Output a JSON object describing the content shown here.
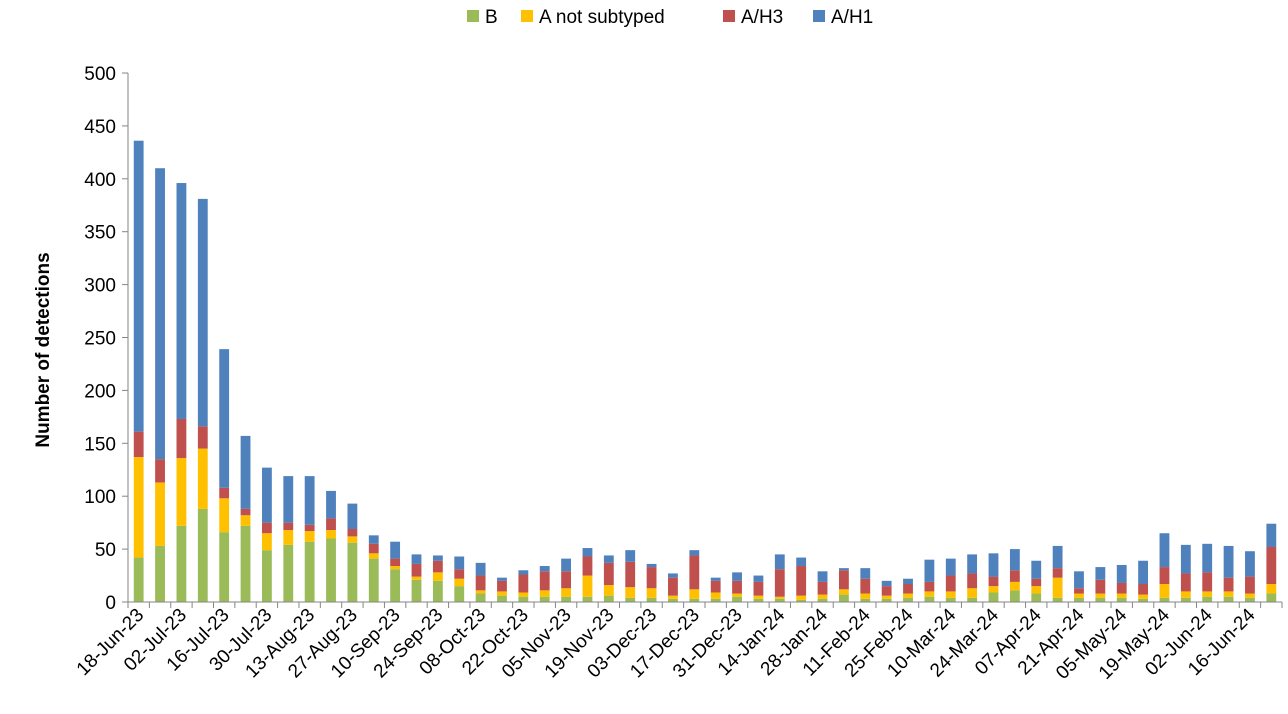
{
  "chart_data": {
    "type": "bar",
    "stacked": true,
    "title": "",
    "xlabel": "",
    "ylabel": "Number of detections",
    "ylim": [
      0,
      500
    ],
    "yticks": [
      0,
      50,
      100,
      150,
      200,
      250,
      300,
      350,
      400,
      450,
      500
    ],
    "grid": false,
    "legend_position": "top-center",
    "categories": [
      "18-Jun-23",
      "25-Jun-23",
      "02-Jul-23",
      "09-Jul-23",
      "16-Jul-23",
      "23-Jul-23",
      "30-Jul-23",
      "06-Aug-23",
      "13-Aug-23",
      "20-Aug-23",
      "27-Aug-23",
      "03-Sep-23",
      "10-Sep-23",
      "17-Sep-23",
      "24-Sep-23",
      "01-Oct-23",
      "08-Oct-23",
      "15-Oct-23",
      "22-Oct-23",
      "29-Oct-23",
      "05-Nov-23",
      "12-Nov-23",
      "19-Nov-23",
      "26-Nov-23",
      "03-Dec-23",
      "10-Dec-23",
      "17-Dec-23",
      "24-Dec-23",
      "31-Dec-23",
      "07-Jan-24",
      "14-Jan-24",
      "21-Jan-24",
      "28-Jan-24",
      "04-Feb-24",
      "11-Feb-24",
      "18-Feb-24",
      "25-Feb-24",
      "03-Mar-24",
      "10-Mar-24",
      "17-Mar-24",
      "24-Mar-24",
      "31-Mar-24",
      "07-Apr-24",
      "14-Apr-24",
      "21-Apr-24",
      "28-Apr-24",
      "05-May-24",
      "12-May-24",
      "19-May-24",
      "26-May-24",
      "02-Jun-24",
      "09-Jun-24",
      "16-Jun-24",
      "23-Jun-24"
    ],
    "tick_labels": [
      "18-Jun-23",
      "02-Jul-23",
      "16-Jul-23",
      "30-Jul-23",
      "13-Aug-23",
      "27-Aug-23",
      "10-Sep-23",
      "24-Sep-23",
      "08-Oct-23",
      "22-Oct-23",
      "05-Nov-23",
      "19-Nov-23",
      "03-Dec-23",
      "17-Dec-23",
      "31-Dec-23",
      "14-Jan-24",
      "28-Jan-24",
      "11-Feb-24",
      "25-Feb-24",
      "10-Mar-24",
      "24-Mar-24",
      "07-Apr-24",
      "21-Apr-24",
      "05-May-24",
      "19-May-24",
      "02-Jun-24",
      "16-Jun-24"
    ],
    "series": [
      {
        "name": "B",
        "color": "#9BBB59",
        "values": [
          42,
          53,
          72,
          88,
          66,
          72,
          49,
          54,
          57,
          60,
          56,
          41,
          31,
          21,
          20,
          15,
          8,
          6,
          5,
          5,
          5,
          5,
          6,
          4,
          4,
          3,
          3,
          3,
          5,
          3,
          3,
          2,
          3,
          7,
          3,
          3,
          4,
          5,
          4,
          4,
          9,
          11,
          8,
          4,
          4,
          4,
          4,
          3,
          4,
          4,
          5,
          5,
          4,
          8
        ]
      },
      {
        "name": "A not subtyped",
        "color": "#FFC000",
        "values": [
          95,
          60,
          64,
          57,
          32,
          10,
          16,
          14,
          10,
          8,
          6,
          5,
          3,
          3,
          8,
          7,
          3,
          4,
          4,
          6,
          8,
          20,
          10,
          10,
          9,
          3,
          9,
          6,
          3,
          3,
          2,
          4,
          4,
          5,
          5,
          3,
          4,
          5,
          6,
          9,
          6,
          8,
          7,
          19,
          4,
          4,
          4,
          4,
          13,
          6,
          5,
          5,
          4,
          9
        ]
      },
      {
        "name": "A/H3",
        "color": "#C0504D",
        "values": [
          24,
          22,
          37,
          21,
          10,
          6,
          10,
          7,
          6,
          11,
          7,
          9,
          7,
          12,
          11,
          9,
          14,
          10,
          17,
          18,
          16,
          18,
          21,
          24,
          20,
          17,
          32,
          11,
          12,
          13,
          26,
          28,
          12,
          18,
          14,
          9,
          9,
          9,
          15,
          14,
          9,
          11,
          7,
          9,
          5,
          13,
          10,
          10,
          16,
          17,
          18,
          13,
          16,
          35
        ]
      },
      {
        "name": "A/H1",
        "color": "#4F81BD",
        "values": [
          275,
          275,
          223,
          215,
          131,
          69,
          52,
          44,
          46,
          26,
          24,
          8,
          16,
          9,
          5,
          12,
          12,
          3,
          4,
          5,
          12,
          8,
          7,
          11,
          3,
          4,
          5,
          3,
          8,
          6,
          14,
          8,
          10,
          2,
          10,
          5,
          5,
          21,
          16,
          18,
          22,
          20,
          17,
          21,
          16,
          12,
          17,
          22,
          32,
          27,
          27,
          30,
          24,
          22
        ]
      }
    ],
    "legend_order": [
      "B",
      "A not subtyped",
      "A/H3",
      "A/H1"
    ]
  }
}
